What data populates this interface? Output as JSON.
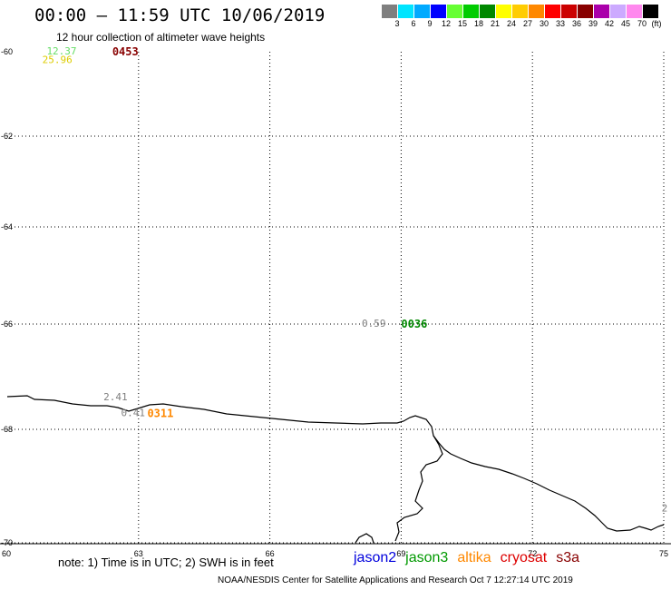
{
  "header": {
    "title": "00:00 – 11:59 UTC 10/06/2019",
    "subtitle": "12 hour collection of altimeter wave heights"
  },
  "legend": {
    "unit": "(ft)",
    "items": [
      {
        "label": "3",
        "color": "#7f7f7f"
      },
      {
        "label": "6",
        "color": "#00e5ff"
      },
      {
        "label": "9",
        "color": "#00aaff"
      },
      {
        "label": "12",
        "color": "#0000ff"
      },
      {
        "label": "15",
        "color": "#66ff33"
      },
      {
        "label": "18",
        "color": "#00cc00"
      },
      {
        "label": "21",
        "color": "#008800"
      },
      {
        "label": "24",
        "color": "#ffff00"
      },
      {
        "label": "27",
        "color": "#ffcc00"
      },
      {
        "label": "30",
        "color": "#ff8800"
      },
      {
        "label": "33",
        "color": "#ff0000"
      },
      {
        "label": "36",
        "color": "#cc0000"
      },
      {
        "label": "39",
        "color": "#880000"
      },
      {
        "label": "42",
        "color": "#aa00aa"
      },
      {
        "label": "45",
        "color": "#ccaaff"
      },
      {
        "label": "70",
        "color": "#ff88ee"
      },
      {
        "label": "",
        "color": "#000000"
      }
    ]
  },
  "map": {
    "lon_ticks": [
      "60",
      "63",
      "66",
      "69",
      "72",
      "75"
    ],
    "lat_ticks": [
      "-60",
      "-62",
      "-64",
      "-66",
      "-68",
      "-70"
    ],
    "observations": [
      {
        "value": "12.37",
        "color": "#66dd66",
        "lon": 60.9,
        "lat": -59.95
      },
      {
        "value": "25.96",
        "color": "#ddcc00",
        "lon": 60.8,
        "lat": -60.2
      },
      {
        "value": "0453",
        "color": "#880000",
        "lon": 62.4,
        "lat": -59.95
      },
      {
        "value": "0.59",
        "color": "#7f7f7f",
        "lon": 68.1,
        "lat": -66.0
      },
      {
        "value": "0036",
        "color": "#008800",
        "lon": 69.0,
        "lat": -66.0
      },
      {
        "value": "2.41",
        "color": "#7f7f7f",
        "lon": 62.2,
        "lat": -67.4
      },
      {
        "value": "0.41",
        "color": "#7f7f7f",
        "lon": 62.6,
        "lat": -67.7
      },
      {
        "value": "0311",
        "color": "#ff8800",
        "lon": 63.2,
        "lat": -67.7
      },
      {
        "value": "2",
        "color": "#7f7f7f",
        "lon": 74.95,
        "lat": -69.4
      }
    ]
  },
  "footer": {
    "note": "note: 1) Time is in UTC; 2) SWH is in feet",
    "missions": [
      {
        "name": "jason2",
        "color": "#0000dd"
      },
      {
        "name": "jason3",
        "color": "#009900"
      },
      {
        "name": "altika",
        "color": "#ff8800"
      },
      {
        "name": "cryosat",
        "color": "#dd0000"
      },
      {
        "name": "s3a",
        "color": "#880000"
      }
    ],
    "credit": "NOAA/NESDIS Center for Satellite Applications and Research   Oct  7 12:27:14 UTC 2019"
  }
}
